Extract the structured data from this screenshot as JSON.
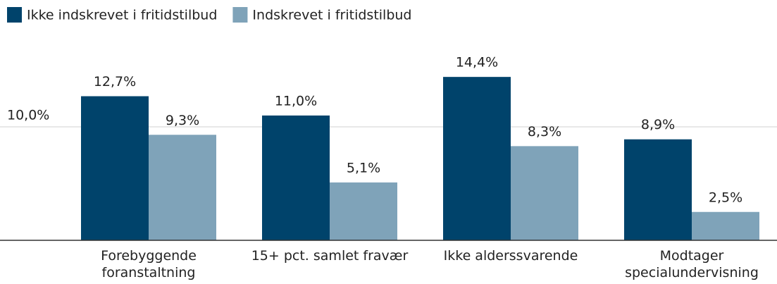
{
  "chart_data": {
    "type": "bar",
    "categories": [
      "Forebyggende foranstaltning",
      "15+ pct. samlet fravær",
      "Ikke alderssvarende",
      "Modtager specialundervisning"
    ],
    "series": [
      {
        "name": "Ikke indskrevet i fritidstilbud",
        "color": "#00436b",
        "values": [
          12.7,
          11.0,
          14.4,
          8.9
        ],
        "value_labels": [
          "12,7%",
          "11,0%",
          "14,4%",
          "8,9%"
        ]
      },
      {
        "name": "Indskrevet i fritidstilbud",
        "color": "#7fa3b9",
        "values": [
          9.3,
          5.1,
          8.3,
          2.5
        ],
        "value_labels": [
          "9,3%",
          "5,1%",
          "8,3%",
          "2,5%"
        ]
      }
    ],
    "ylim": [
      0,
      15
    ],
    "yticks": [
      {
        "value": 10,
        "label": "10,0%"
      }
    ],
    "grid": true,
    "legend": "top-left"
  }
}
